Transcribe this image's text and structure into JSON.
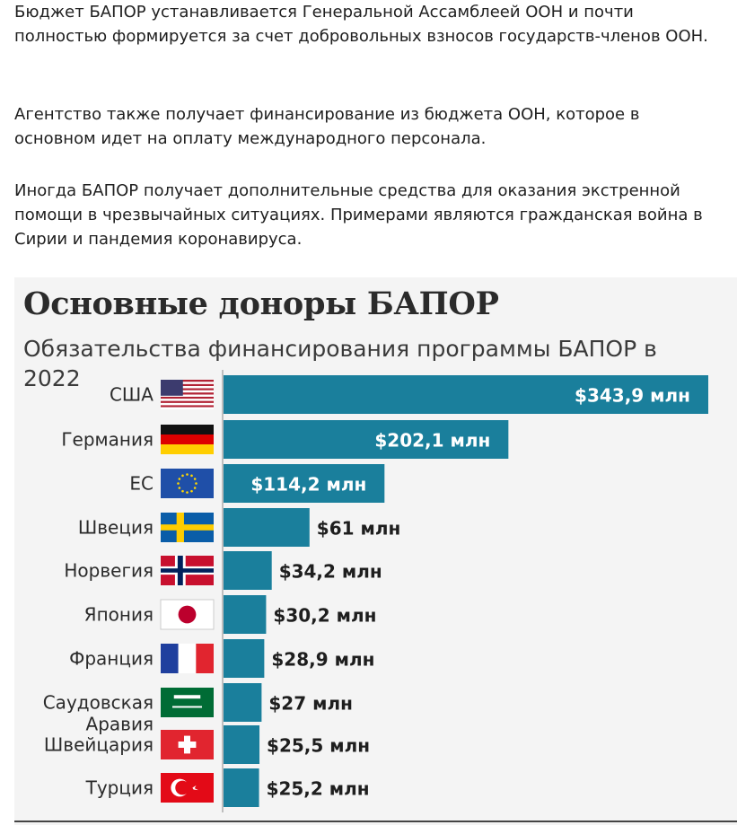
{
  "article": {
    "paragraphs": [
      "Бюджет БАПОР устанавливается Генеральной Ассамблеей ООН и почти полностью формируется за счет добровольных взносов государств-членов ООН.",
      "Агентство также получает финансирование из бюджета ООН, которое в основном идет на оплату международного персонала.",
      "Иногда БАПОР получает дополнительные средства для оказания экстренной помощи в чрезвычайных ситуациях. Примерами являются гражданская война в Сирии и пандемия коронавируса."
    ]
  },
  "colors": {
    "bar": "#1a7f9c",
    "label_inside": "#ffffff",
    "label_outside": "#1e1e1e",
    "panel": "#f4f4f4"
  },
  "chart_data": {
    "type": "bar",
    "orientation": "horizontal",
    "title": "Основные доноры БАПОР",
    "subtitle": "Обязательства финансирования программы БАПОР в 2022",
    "unit": "млн долларов США",
    "categories": [
      "США",
      "Германия",
      "ЕС",
      "Швеция",
      "Норвегия",
      "Япония",
      "Франция",
      "Саудовская Аравия",
      "Швейцария",
      "Турция"
    ],
    "values": [
      343.9,
      202.1,
      114.2,
      61,
      34.2,
      30.2,
      28.9,
      27,
      25.5,
      25.2
    ],
    "value_labels": [
      "$343,9 млн",
      "$202,1 млн",
      "$114,2 млн",
      "$61 млн",
      "$34,2 млн",
      "$30,2 млн",
      "$28,9 млн",
      "$27 млн",
      "$25,5 млн",
      "$25,2 млн"
    ],
    "flag_icons": [
      "flag-usa-icon",
      "flag-germany-icon",
      "flag-eu-icon",
      "flag-sweden-icon",
      "flag-norway-icon",
      "flag-japan-icon",
      "flag-france-icon",
      "flag-saudi-arabia-icon",
      "flag-switzerland-icon",
      "flag-turkey-icon"
    ],
    "xlim": [
      0,
      343.9
    ],
    "grid": false,
    "legend": "none"
  }
}
